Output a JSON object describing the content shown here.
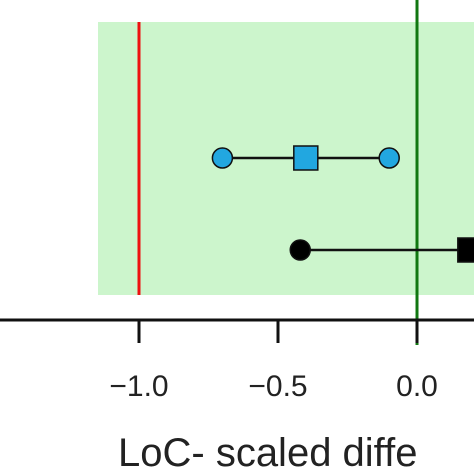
{
  "chart_data": {
    "type": "scatter",
    "title": "",
    "xlabel": "LoC- scaled diffe",
    "ylabel": "",
    "xlim": [
      -1.5,
      0.205
    ],
    "x_ticks": [
      -1.0,
      -0.5,
      0.0
    ],
    "x_tick_labels": [
      "−1.0",
      "−0.5",
      "0.0"
    ],
    "equivalence_region": [
      -1.0,
      1.0
    ],
    "reference_lines": [
      {
        "x": -1.0,
        "color": "#ee1111",
        "meaning": "lower limit"
      },
      {
        "x": 0.0,
        "color": "#117711",
        "meaning": "zero"
      }
    ],
    "series": [
      {
        "low": -0.7,
        "estimate": -0.4,
        "high": -0.1,
        "color": "#22a7e0",
        "point_marker": "square",
        "end_marker": "circle"
      },
      {
        "low": -0.42,
        "estimate": 0.19,
        "high": 0.3,
        "color": "#000000",
        "point_marker": "square",
        "end_marker": "circle"
      }
    ],
    "grid": false,
    "legend": "none"
  },
  "colors": {
    "region_fill": "#ccf5cc",
    "axis": "#111111"
  }
}
